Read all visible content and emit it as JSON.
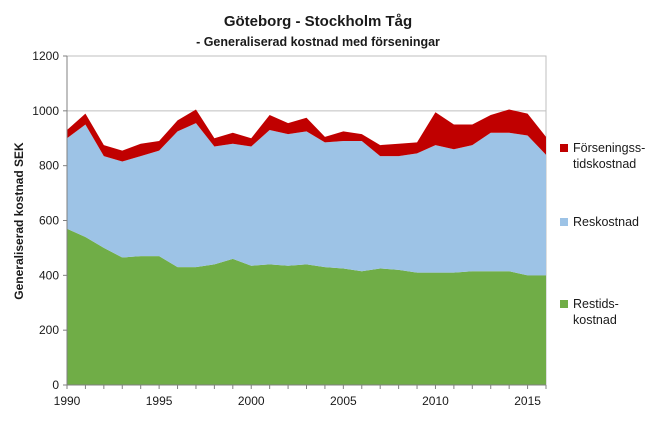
{
  "chart_data": {
    "type": "area",
    "title": "Göteborg - Stockholm  Tåg",
    "subtitle": "- Generaliserad kostnad med förseningar",
    "ylabel": "Generaliserad kostnad  SEK",
    "xlabel": "",
    "stacked": true,
    "xlim": [
      1990,
      2016
    ],
    "ylim": [
      0,
      1200
    ],
    "x_ticks": [
      1990,
      1995,
      2000,
      2005,
      2010,
      2015
    ],
    "y_ticks": [
      0,
      200,
      400,
      600,
      800,
      1000,
      1200
    ],
    "grid": "horizontal",
    "legend_position": "right",
    "x": [
      1990,
      1991,
      1992,
      1993,
      1994,
      1995,
      1996,
      1997,
      1998,
      1999,
      2000,
      2001,
      2002,
      2003,
      2004,
      2005,
      2006,
      2007,
      2008,
      2009,
      2010,
      2011,
      2012,
      2013,
      2014,
      2015,
      2016
    ],
    "series": [
      {
        "name_lines": [
          "Restids-",
          "kostnad"
        ],
        "color": "#70AD47",
        "values": [
          570,
          540,
          500,
          465,
          470,
          470,
          430,
          430,
          440,
          460,
          435,
          440,
          435,
          440,
          430,
          425,
          415,
          425,
          420,
          410,
          410,
          410,
          415,
          415,
          415,
          400,
          400
        ]
      },
      {
        "name": "Reskostnad",
        "color": "#9DC3E6",
        "values": [
          330,
          410,
          335,
          350,
          365,
          385,
          495,
          525,
          430,
          420,
          435,
          490,
          480,
          485,
          455,
          465,
          475,
          410,
          415,
          435,
          465,
          450,
          460,
          505,
          505,
          510,
          440
        ]
      },
      {
        "name_lines": [
          "Förseningss-",
          "tidskostnad"
        ],
        "color": "#C00000",
        "values": [
          30,
          40,
          40,
          40,
          45,
          35,
          40,
          50,
          30,
          40,
          30,
          55,
          40,
          50,
          20,
          35,
          25,
          40,
          45,
          40,
          120,
          90,
          75,
          65,
          85,
          80,
          65
        ]
      }
    ]
  }
}
